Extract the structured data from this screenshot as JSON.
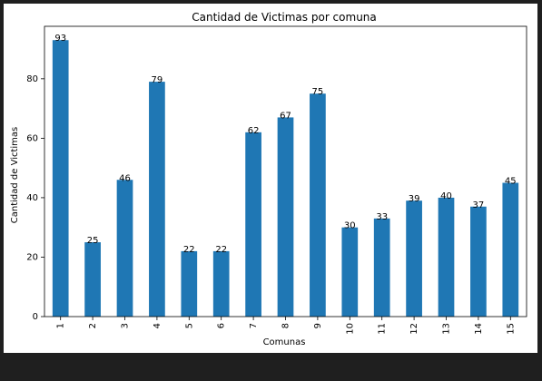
{
  "chart_data": {
    "type": "bar",
    "title": "Cantidad de Victimas por comuna",
    "xlabel": "Comunas",
    "ylabel": "Cantidad de Victimas",
    "categories": [
      "1",
      "2",
      "3",
      "4",
      "5",
      "6",
      "7",
      "8",
      "9",
      "10",
      "11",
      "12",
      "13",
      "14",
      "15"
    ],
    "values": [
      93,
      25,
      46,
      79,
      22,
      22,
      62,
      67,
      75,
      30,
      33,
      39,
      40,
      37,
      45
    ],
    "ylim": [
      0,
      97.65
    ],
    "yticks": [
      0,
      20,
      40,
      60,
      80
    ],
    "bar_color": "#1f77b4",
    "grid": false,
    "legend": "none"
  }
}
